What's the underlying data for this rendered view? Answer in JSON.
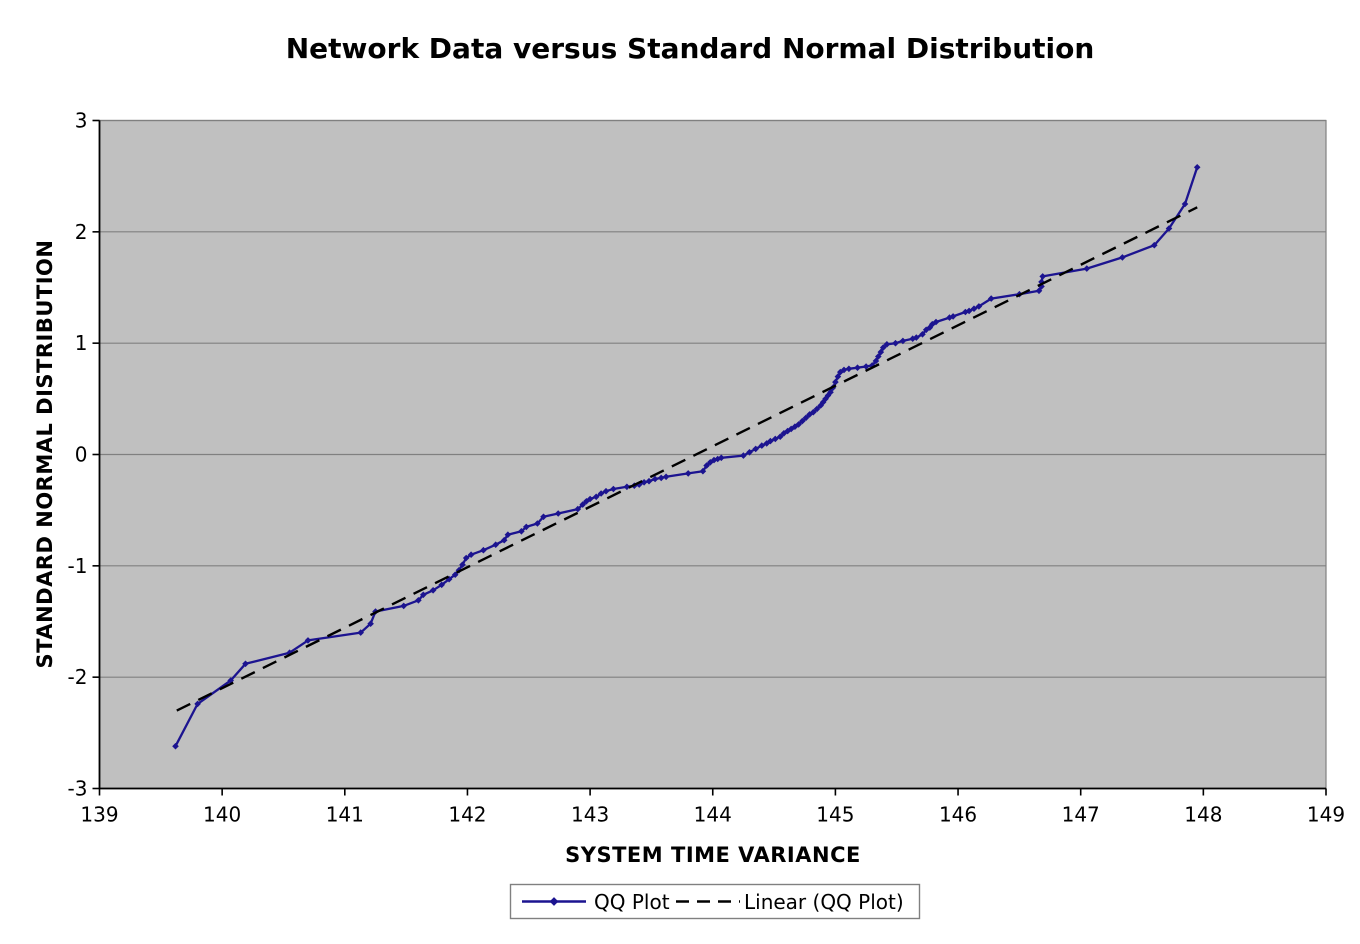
{
  "chart_data": {
    "type": "line",
    "title": "Network Data versus Standard Normal Distribution",
    "xlabel": "SYSTEM TIME VARIANCE",
    "ylabel": "STANDARD NORMAL DISTRIBUTION",
    "xlim": [
      139,
      149
    ],
    "ylim": [
      -3,
      3
    ],
    "x_ticks": [
      139,
      140,
      141,
      142,
      143,
      144,
      145,
      146,
      147,
      148,
      149
    ],
    "y_ticks": [
      -3,
      -2,
      -1,
      0,
      1,
      2,
      3
    ],
    "grid": "horizontal",
    "legend_position": "bottom",
    "colors": {
      "plot_bg": "#c0c0c0",
      "gridline": "#808080",
      "plot_border": "#808080",
      "axis_line": "#000000",
      "qq_series": "#1c1490",
      "trend_series": "#000000"
    },
    "series": [
      {
        "name": "QQ Plot",
        "style": "line-with-diamond-markers",
        "color": "#1c1490",
        "points": [
          [
            139.62,
            -2.62
          ],
          [
            139.8,
            -2.24
          ],
          [
            140.07,
            -2.03
          ],
          [
            140.19,
            -1.88
          ],
          [
            140.55,
            -1.78
          ],
          [
            140.7,
            -1.67
          ],
          [
            141.13,
            -1.6
          ],
          [
            141.21,
            -1.52
          ],
          [
            141.25,
            -1.41
          ],
          [
            141.48,
            -1.36
          ],
          [
            141.6,
            -1.31
          ],
          [
            141.64,
            -1.26
          ],
          [
            141.72,
            -1.22
          ],
          [
            141.79,
            -1.17
          ],
          [
            141.85,
            -1.12
          ],
          [
            141.9,
            -1.08
          ],
          [
            141.93,
            -1.04
          ],
          [
            141.96,
            -0.99
          ],
          [
            141.99,
            -0.93
          ],
          [
            142.03,
            -0.9
          ],
          [
            142.13,
            -0.86
          ],
          [
            142.23,
            -0.81
          ],
          [
            142.3,
            -0.77
          ],
          [
            142.33,
            -0.72
          ],
          [
            142.44,
            -0.69
          ],
          [
            142.48,
            -0.65
          ],
          [
            142.57,
            -0.62
          ],
          [
            142.62,
            -0.56
          ],
          [
            142.74,
            -0.53
          ],
          [
            142.9,
            -0.49
          ],
          [
            142.94,
            -0.45
          ],
          [
            142.97,
            -0.42
          ],
          [
            143.0,
            -0.4
          ],
          [
            143.05,
            -0.38
          ],
          [
            143.09,
            -0.35
          ],
          [
            143.13,
            -0.33
          ],
          [
            143.19,
            -0.31
          ],
          [
            143.3,
            -0.29
          ],
          [
            143.36,
            -0.28
          ],
          [
            143.4,
            -0.27
          ],
          [
            143.44,
            -0.25
          ],
          [
            143.48,
            -0.24
          ],
          [
            143.53,
            -0.22
          ],
          [
            143.58,
            -0.21
          ],
          [
            143.62,
            -0.2
          ],
          [
            143.8,
            -0.17
          ],
          [
            143.92,
            -0.15
          ],
          [
            143.95,
            -0.1
          ],
          [
            143.98,
            -0.07
          ],
          [
            144.01,
            -0.05
          ],
          [
            144.04,
            -0.04
          ],
          [
            144.07,
            -0.03
          ],
          [
            144.25,
            -0.01
          ],
          [
            144.3,
            0.02
          ],
          [
            144.35,
            0.05
          ],
          [
            144.4,
            0.08
          ],
          [
            144.44,
            0.1
          ],
          [
            144.47,
            0.12
          ],
          [
            144.51,
            0.14
          ],
          [
            144.55,
            0.16
          ],
          [
            144.58,
            0.19
          ],
          [
            144.61,
            0.21
          ],
          [
            144.64,
            0.23
          ],
          [
            144.67,
            0.25
          ],
          [
            144.7,
            0.27
          ],
          [
            144.73,
            0.3
          ],
          [
            144.76,
            0.33
          ],
          [
            144.79,
            0.36
          ],
          [
            144.82,
            0.38
          ],
          [
            144.85,
            0.41
          ],
          [
            144.88,
            0.44
          ],
          [
            144.9,
            0.47
          ],
          [
            144.92,
            0.5
          ],
          [
            144.94,
            0.53
          ],
          [
            144.96,
            0.56
          ],
          [
            144.98,
            0.6
          ],
          [
            145.0,
            0.65
          ],
          [
            145.02,
            0.7
          ],
          [
            145.04,
            0.74
          ],
          [
            145.07,
            0.76
          ],
          [
            145.11,
            0.77
          ],
          [
            145.18,
            0.78
          ],
          [
            145.25,
            0.79
          ],
          [
            145.3,
            0.8
          ],
          [
            145.33,
            0.84
          ],
          [
            145.35,
            0.88
          ],
          [
            145.37,
            0.92
          ],
          [
            145.39,
            0.96
          ],
          [
            145.42,
            0.99
          ],
          [
            145.49,
            1.0
          ],
          [
            145.55,
            1.02
          ],
          [
            145.63,
            1.04
          ],
          [
            145.66,
            1.05
          ],
          [
            145.71,
            1.08
          ],
          [
            145.74,
            1.12
          ],
          [
            145.77,
            1.14
          ],
          [
            145.79,
            1.17
          ],
          [
            145.82,
            1.19
          ],
          [
            145.93,
            1.23
          ],
          [
            145.96,
            1.24
          ],
          [
            146.06,
            1.28
          ],
          [
            146.09,
            1.29
          ],
          [
            146.13,
            1.31
          ],
          [
            146.17,
            1.33
          ],
          [
            146.27,
            1.4
          ],
          [
            146.5,
            1.44
          ],
          [
            146.66,
            1.47
          ],
          [
            146.68,
            1.51
          ],
          [
            146.68,
            1.55
          ],
          [
            146.69,
            1.6
          ],
          [
            147.05,
            1.67
          ],
          [
            147.34,
            1.77
          ],
          [
            147.6,
            1.88
          ],
          [
            147.72,
            2.03
          ],
          [
            147.85,
            2.25
          ],
          [
            147.95,
            2.58
          ]
        ]
      },
      {
        "name": "Linear (QQ Plot)",
        "style": "dashed-line",
        "color": "#000000",
        "points": [
          [
            139.63,
            -2.3
          ],
          [
            147.95,
            2.22
          ]
        ]
      }
    ],
    "legend": {
      "items": [
        {
          "label": "QQ Plot"
        },
        {
          "label": "Linear (QQ Plot)"
        }
      ]
    }
  }
}
